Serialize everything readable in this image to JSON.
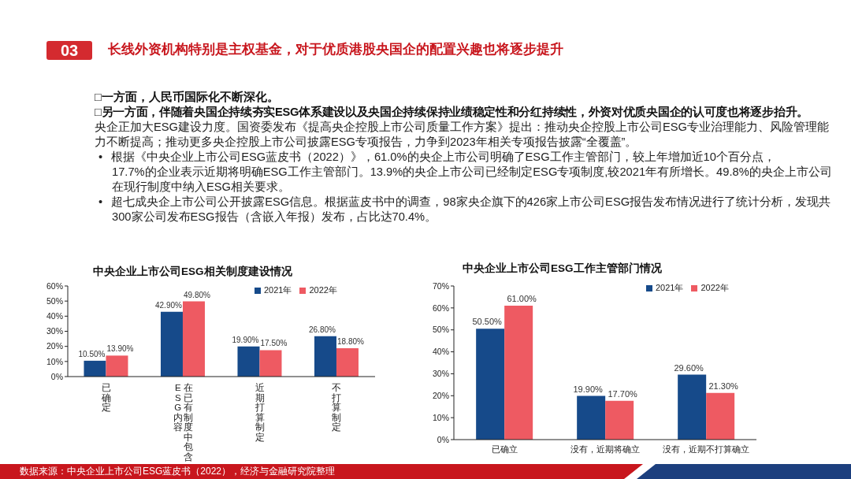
{
  "chart_data": [
    {
      "type": "other",
      "title": "长线外资机构特别是主权基金，对于优质港股央国企的配置兴趣也将逐步提升",
      "annotations": [
        "03",
        "□一方面，人民币国际化不断深化。",
        "□另一方面，伴随着央国企持续夯实ESG体系建设以及央国企持续保持业绩稳定性和分红持续性，外资对优质央国企的认可度也将逐步抬升。",
        "央企正加大ESG建设力度。国资委发布《提高央企控股上市公司质量工作方案》提出：推动央企控股上市公司ESG专业治理能力、风险管理能力不断提高；推动更多央企控股上市公司披露ESG专项报告，力争到2023年相关专项报告披露“全覆盖”。",
        "• 根据《中央企业上市公司ESG蓝皮书（2022）》，61.0%的央企上市公司明确了ESG工作主管部门，较上年增加近10个百分点，\n17.7%的企业表示近期将明确ESG工作主管部门。13.9%的央企上市公司已经制定ESG专项制度,较2021年有所增长。49.8%的央企上市公司在现行制度中纳入ESG相关要求。",
        "• 超七成央企上市公司公开披露ESG信息。根据蓝皮书中的调查，98家央企旗下的426家上市公司ESG报告发布情况进行了统计分析，发现共300家公司发布ESG报告（含嵌入年报）发布，占比达70.4%。"
      ]
    },
    {
      "type": "bar",
      "title": "中央企业上市公司ESG相关制度建设情况",
      "categories": [
        "已确定",
        "在已有制度中包含ESG内容",
        "近期打算制定",
        "不打算制定"
      ],
      "series": [
        {
          "name": "2021年",
          "color": "#164a8a",
          "values": [
            10.5,
            42.9,
            19.9,
            26.8
          ],
          "value_labels": [
            "10.50%",
            "42.90%",
            "19.90%",
            "26.80%"
          ]
        },
        {
          "name": "2022年",
          "color": "#ee5a62",
          "values": [
            13.9,
            49.8,
            17.5,
            18.8
          ],
          "value_labels": [
            "13.90%",
            "49.80%",
            "17.50%",
            "18.80%"
          ]
        }
      ],
      "ylim": [
        0,
        60
      ],
      "yticks": [
        {
          "value": 0,
          "label": "0%"
        },
        {
          "value": 10,
          "label": "10%"
        },
        {
          "value": 20,
          "label": "20%"
        },
        {
          "value": 30,
          "label": "30%"
        },
        {
          "value": 40,
          "label": "40%"
        },
        {
          "value": 50,
          "label": "50%"
        },
        {
          "value": 60,
          "label": "60%"
        }
      ],
      "legend": "top right",
      "annotations": [
        "数据来源：中央企业上市公司ESG蓝皮书（2022），经济与金融研究院整理"
      ]
    },
    {
      "type": "bar",
      "title": "中央企业上市公司ESG工作主管部门情况",
      "categories": [
        "已确立",
        "没有，近期将确立",
        "没有，近期不打算确立"
      ],
      "series": [
        {
          "name": "2021年",
          "color": "#164a8a",
          "values": [
            50.5,
            19.9,
            29.6
          ],
          "value_labels": [
            "50.50%",
            "19.90%",
            "29.60%"
          ]
        },
        {
          "name": "2022年",
          "color": "#ee5a62",
          "values": [
            61.0,
            17.7,
            21.3
          ],
          "value_labels": [
            "61.00%",
            "17.70%",
            "21.30%"
          ]
        }
      ],
      "ylim": [
        0,
        70
      ],
      "yticks": [
        {
          "value": 0,
          "label": "0%"
        },
        {
          "value": 10,
          "label": "10%"
        },
        {
          "value": 20,
          "label": "20%"
        },
        {
          "value": 30,
          "label": "30%"
        },
        {
          "value": 40,
          "label": "40%"
        },
        {
          "value": 50,
          "label": "50%"
        },
        {
          "value": 60,
          "label": "60%"
        },
        {
          "value": 70,
          "label": "70%"
        }
      ],
      "legend": "top right"
    }
  ]
}
